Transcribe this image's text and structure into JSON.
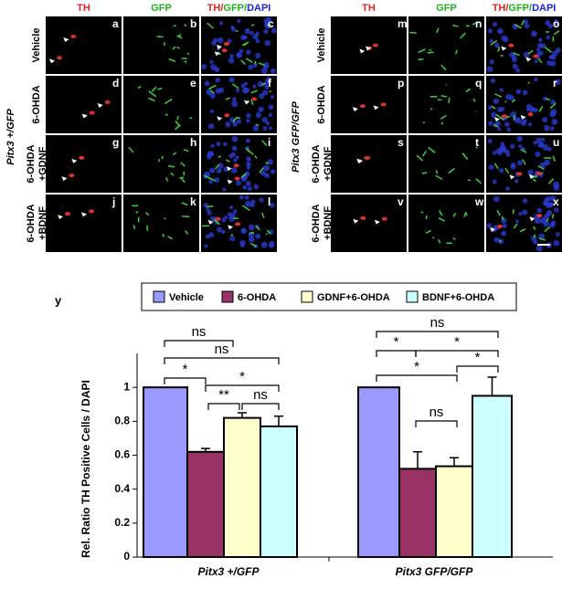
{
  "figure_letter": "y",
  "panels": [
    {
      "genotype": "Pitx3 +/GFP",
      "columns": [
        "TH",
        "GFP"
      ],
      "merged_header": [
        "TH/",
        "GFP/",
        "DAPI"
      ],
      "rows": [
        [
          "Vehicle"
        ],
        [
          "6-OHDA"
        ],
        [
          "6-OHDA",
          "+GDNF"
        ],
        [
          "6-OHDA",
          "+BDNF"
        ]
      ],
      "letters": [
        "a",
        "b",
        "c",
        "d",
        "e",
        "f",
        "g",
        "h",
        "i",
        "j",
        "k",
        "l"
      ]
    },
    {
      "genotype": "Pitx3 GFP/GFP",
      "columns": [
        "TH",
        "GFP"
      ],
      "merged_header": [
        "TH/",
        "GFP/",
        "DAPI"
      ],
      "rows": [
        [
          "Vehicle"
        ],
        [
          "6-OHDA"
        ],
        [
          "6-OHDA",
          "+GDNF"
        ],
        [
          "6-OHDA",
          "+BDNF"
        ]
      ],
      "letters": [
        "m",
        "n",
        "o",
        "p",
        "q",
        "r",
        "s",
        "t",
        "u",
        "v",
        "w",
        "x"
      ]
    }
  ],
  "chart_data": {
    "type": "bar",
    "ylabel": "Rel. Ratio TH Positive Cells / DAPI",
    "categories": [
      "Pitx3 +/GFP",
      "Pitx3 GFP/GFP"
    ],
    "series": [
      {
        "name": "Vehicle",
        "color": "#9999ff",
        "values": [
          1,
          1
        ],
        "errors": [
          0,
          0
        ]
      },
      {
        "name": "6-OHDA",
        "color": "#993366",
        "values": [
          0.62,
          0.52
        ],
        "errors": [
          0.02,
          0.1
        ]
      },
      {
        "name": "GDNF+6-OHDA",
        "color": "#ffffcc",
        "values": [
          0.82,
          0.535
        ],
        "errors": [
          0.03,
          0.05
        ]
      },
      {
        "name": "BDNF+6-OHDA",
        "color": "#ccffff",
        "values": [
          0.77,
          0.95
        ],
        "errors": [
          0.06,
          0.11
        ]
      }
    ],
    "ylim": [
      0,
      1.2
    ],
    "yticks": [
      0,
      0.2,
      0.4,
      0.6,
      0.8,
      1
    ],
    "annotations": [
      "ns",
      "ns",
      "*",
      "*",
      "**",
      "ns",
      "ns",
      "*",
      "*",
      "*",
      "*",
      "ns"
    ]
  }
}
